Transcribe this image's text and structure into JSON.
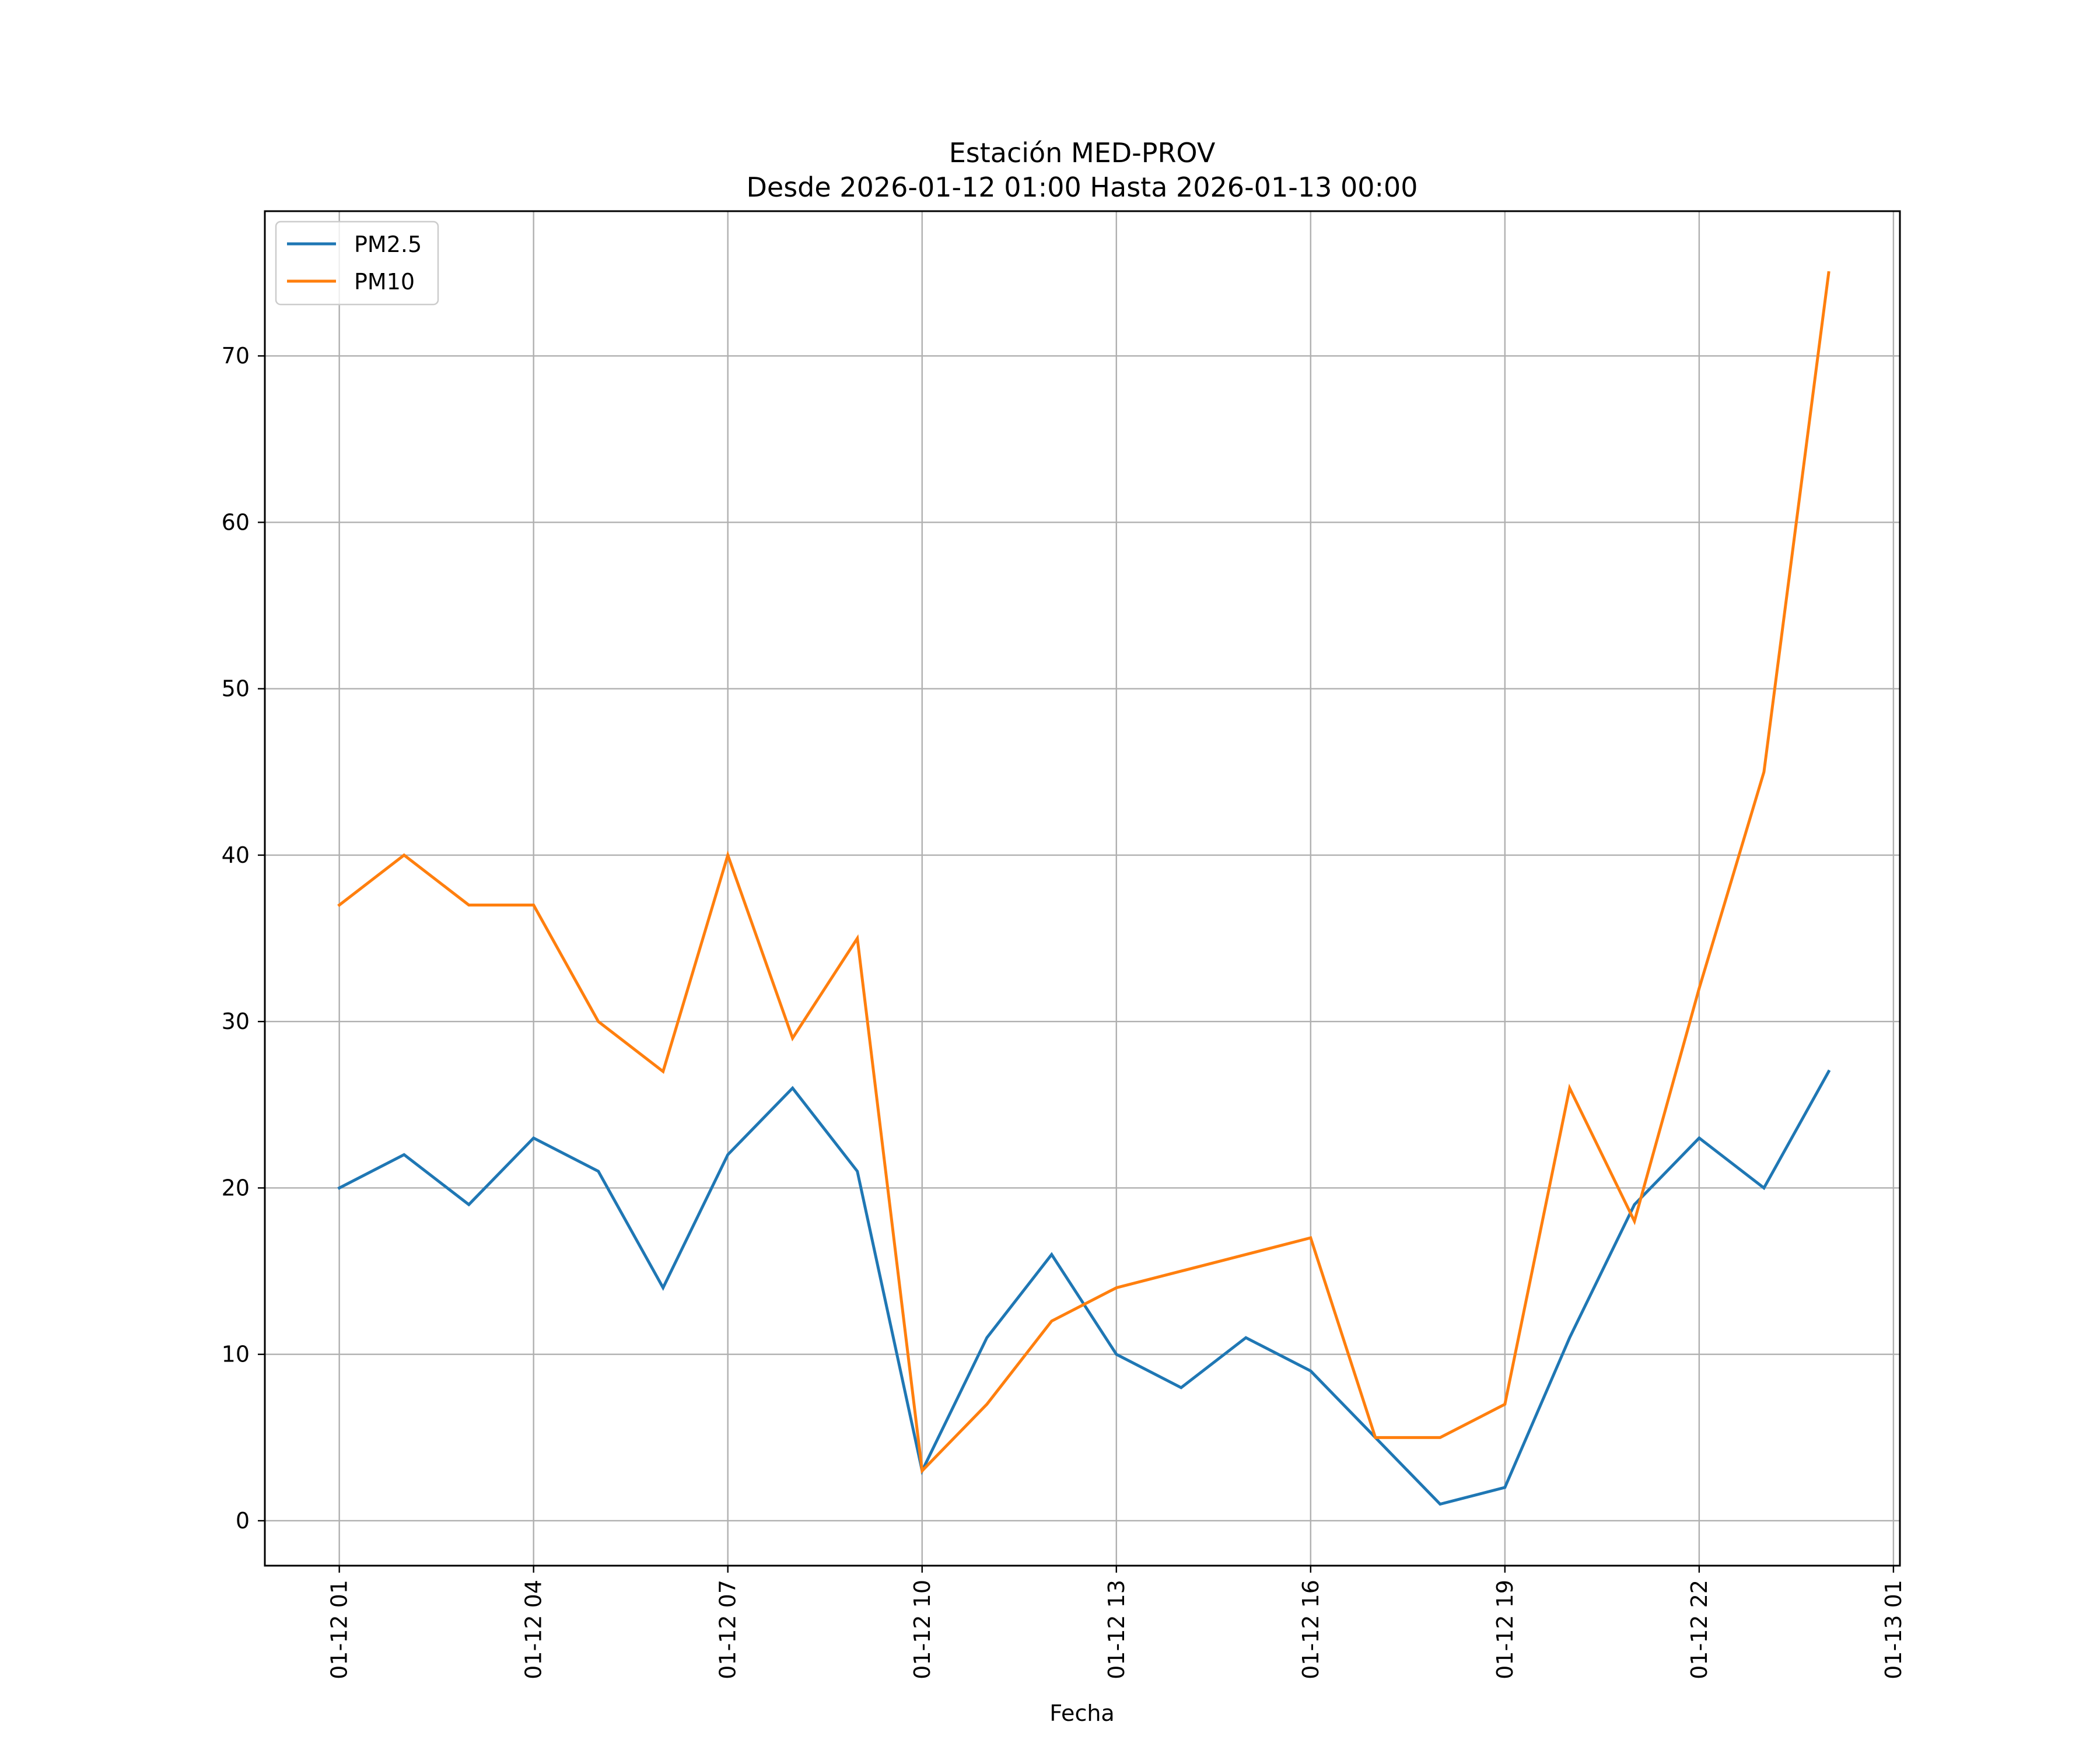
{
  "chart_data": {
    "type": "line",
    "title": "Estación MED-PROV",
    "subtitle": "Desde 2026-01-12 01:00 Hasta 2026-01-13 00:00",
    "xlabel": "Fecha",
    "ylabel": "",
    "x_hours": [
      1,
      2,
      3,
      4,
      5,
      6,
      7,
      8,
      9,
      10,
      11,
      12,
      13,
      14,
      15,
      16,
      17,
      18,
      19,
      20,
      21,
      22,
      23,
      24
    ],
    "xlim": [
      -0.15,
      25.1
    ],
    "ylim": [
      -2.7,
      78.7
    ],
    "grid": true,
    "legend_position": "top-left",
    "x_ticks": [
      {
        "hour": 1,
        "label": "01-12 01"
      },
      {
        "hour": 4,
        "label": "01-12 04"
      },
      {
        "hour": 7,
        "label": "01-12 07"
      },
      {
        "hour": 10,
        "label": "01-12 10"
      },
      {
        "hour": 13,
        "label": "01-12 13"
      },
      {
        "hour": 16,
        "label": "01-12 16"
      },
      {
        "hour": 19,
        "label": "01-12 19"
      },
      {
        "hour": 22,
        "label": "01-12 22"
      },
      {
        "hour": 25,
        "label": "01-13 01"
      }
    ],
    "y_ticks": [
      {
        "value": 0,
        "label": "0"
      },
      {
        "value": 10,
        "label": "10"
      },
      {
        "value": 20,
        "label": "20"
      },
      {
        "value": 30,
        "label": "30"
      },
      {
        "value": 40,
        "label": "40"
      },
      {
        "value": 50,
        "label": "50"
      },
      {
        "value": 60,
        "label": "60"
      },
      {
        "value": 70,
        "label": "70"
      }
    ],
    "series": [
      {
        "name": "PM2.5",
        "color": "#1f77b4",
        "values": [
          20,
          22,
          19,
          23,
          21,
          14,
          22,
          26,
          21,
          3,
          11,
          16,
          10,
          8,
          11,
          9,
          5,
          1,
          2,
          11,
          19,
          23,
          20,
          27
        ]
      },
      {
        "name": "PM10",
        "color": "#ff7f0e",
        "values": [
          37,
          40,
          37,
          37,
          30,
          27,
          40,
          29,
          35,
          3,
          7,
          12,
          14,
          15,
          16,
          17,
          5,
          5,
          7,
          26,
          18,
          32,
          45,
          75
        ]
      }
    ]
  }
}
